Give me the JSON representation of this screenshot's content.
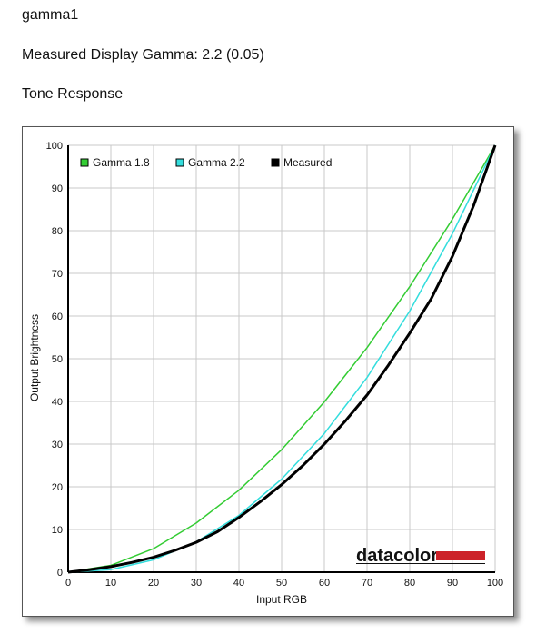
{
  "header": {
    "title": "gamma1",
    "measured_gamma_text": "Measured Display Gamma: 2.2 (0.05)",
    "section_title": "Tone Response"
  },
  "logo": {
    "text": "datacolor",
    "bar_color": "#cc2229"
  },
  "chart_data": {
    "type": "line",
    "xlabel": "Input RGB",
    "ylabel": "Output Brightness",
    "xlim": [
      0,
      100
    ],
    "ylim": [
      0,
      100
    ],
    "xticks": [
      0,
      10,
      20,
      30,
      40,
      50,
      60,
      70,
      80,
      90,
      100
    ],
    "yticks": [
      0,
      10,
      20,
      30,
      40,
      50,
      60,
      70,
      80,
      90,
      100
    ],
    "grid": true,
    "legend_position": "top-left",
    "series": [
      {
        "name": "Gamma 1.8",
        "color": "#33cc33",
        "x": [
          0,
          10,
          20,
          30,
          40,
          50,
          60,
          70,
          80,
          90,
          100
        ],
        "y": [
          0,
          1.6,
          5.5,
          11.5,
          19.2,
          28.7,
          39.9,
          52.6,
          66.9,
          82.7,
          100
        ]
      },
      {
        "name": "Gamma 2.2",
        "color": "#33dddd",
        "x": [
          0,
          10,
          20,
          30,
          40,
          50,
          60,
          70,
          80,
          90,
          100
        ],
        "y": [
          0,
          0.6,
          2.9,
          7.1,
          13.3,
          21.8,
          32.5,
          45.6,
          61.2,
          79.3,
          100
        ]
      },
      {
        "name": "Measured",
        "color": "#000000",
        "x": [
          0,
          5,
          10,
          15,
          20,
          25,
          30,
          35,
          40,
          45,
          50,
          55,
          60,
          65,
          70,
          75,
          80,
          85,
          90,
          95,
          100
        ],
        "y": [
          0,
          0.6,
          1.3,
          2.3,
          3.5,
          5.1,
          7.0,
          9.5,
          12.8,
          16.5,
          20.5,
          25.0,
          30.0,
          35.5,
          41.5,
          48.5,
          56.0,
          64.0,
          74.0,
          86.0,
          100
        ]
      }
    ]
  }
}
